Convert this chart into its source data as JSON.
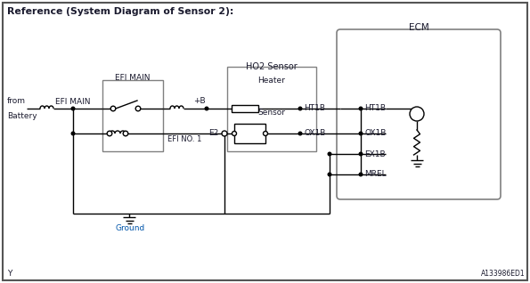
{
  "title": "Reference (System Diagram of Sensor 2):",
  "bg_color": "#ffffff",
  "line_color": "#000000",
  "gray_color": "#808080",
  "blue_color": "#0055aa",
  "dark_color": "#1a1a2e",
  "text_ecm": "ECM",
  "text_ho2": "HO2 Sensor",
  "text_efi_main_box": "EFI MAIN",
  "text_efi_main_wire": "EFI MAIN",
  "text_efi_no1": "EFI NO. 1",
  "text_heater": "Heater",
  "text_sensor": "Sensor",
  "text_from": "from",
  "text_battery": "Battery",
  "text_ground": "Ground",
  "text_ht1b_l": "HT1B",
  "text_ht1b_r": "HT1B",
  "text_ox1b_l": "OX1B",
  "text_ox1b_r": "OX1B",
  "text_ex1b": "EX1B",
  "text_mrel": "MREL",
  "text_e2": "E2",
  "text_plus_b": "+B",
  "text_y": "Y",
  "text_id": "A133986ED1",
  "fig_w": 5.95,
  "fig_h": 3.18,
  "dpi": 100
}
